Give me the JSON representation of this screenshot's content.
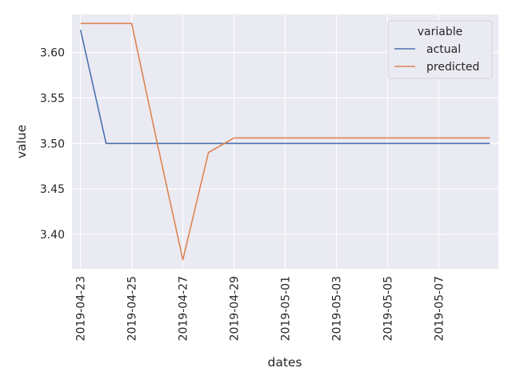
{
  "chart_data": {
    "type": "line",
    "xlabel": "dates",
    "ylabel": "value",
    "x_ticks": [
      "2019-04-23",
      "2019-04-25",
      "2019-04-27",
      "2019-04-29",
      "2019-05-01",
      "2019-05-03",
      "2019-05-05",
      "2019-05-07"
    ],
    "y_ticks": [
      "3.40",
      "3.45",
      "3.50",
      "3.55",
      "3.60"
    ],
    "ylim": [
      3.362,
      3.642
    ],
    "xlim": [
      "2019-04-22T16:00",
      "2019-05-09T08:00"
    ],
    "grid": true,
    "legend": {
      "title": "variable",
      "position": "top-right"
    },
    "x": [
      "2019-04-23",
      "2019-04-24",
      "2019-04-25",
      "2019-04-26",
      "2019-04-27",
      "2019-04-28",
      "2019-04-29",
      "2019-04-30",
      "2019-05-01",
      "2019-05-02",
      "2019-05-03",
      "2019-05-04",
      "2019-05-05",
      "2019-05-06",
      "2019-05-07",
      "2019-05-08",
      "2019-05-09"
    ],
    "series": [
      {
        "name": "actual",
        "color": "#4c72b0",
        "values": [
          3.625,
          3.5,
          3.5,
          3.5,
          3.5,
          3.5,
          3.5,
          3.5,
          3.5,
          3.5,
          3.5,
          3.5,
          3.5,
          3.5,
          3.5,
          3.5,
          3.5
        ]
      },
      {
        "name": "predicted",
        "color": "#dd8452",
        "values": [
          3.632,
          3.632,
          3.632,
          3.5,
          3.372,
          3.49,
          3.506,
          3.506,
          3.506,
          3.506,
          3.506,
          3.506,
          3.506,
          3.506,
          3.506,
          3.506,
          3.506
        ]
      }
    ]
  }
}
